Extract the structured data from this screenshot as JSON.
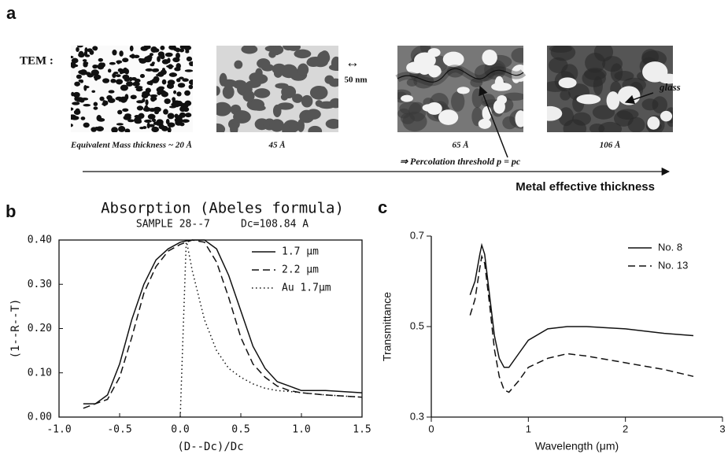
{
  "panel_a": {
    "label": "a",
    "tem_label": "TEM :",
    "scale": "50 nm",
    "thicknesses": [
      "Equivalent Mass thickness ~ 20 Å",
      "45 Å",
      "65 Å",
      "106 Å"
    ],
    "percolation": "⇒ Percolation threshold p = pc",
    "glass": "glass",
    "axis_label": "Metal effective thickness"
  },
  "chart_data": [
    {
      "type": "line",
      "panel": "b",
      "title": "Absorption (Abeles formula)",
      "subtitle": "SAMPLE 28--7     Dc=108.84 A",
      "x_label": "(D--Dc)/Dc",
      "y_label": "(1--R--T)",
      "frame": true,
      "legend": "upper right",
      "xlim": [
        -1,
        1.5
      ],
      "xticks": [
        {
          "value": -1,
          "label": "-1.0"
        },
        -0.5,
        {
          "value": 0,
          "label": "0.0"
        },
        0.5,
        {
          "value": 1,
          "label": "1.0"
        },
        1.5
      ],
      "ylim": [
        0,
        0.4
      ],
      "yticks": [
        {
          "value": 0,
          "label": "0.00"
        },
        {
          "value": 0.1,
          "label": "0.10"
        },
        {
          "value": 0.2,
          "label": "0.20"
        },
        {
          "value": 0.3,
          "label": "0.30"
        },
        {
          "value": 0.4,
          "label": "0.40"
        }
      ],
      "x": [
        -0.8,
        -0.7,
        -0.6,
        -0.5,
        -0.4,
        -0.3,
        -0.2,
        -0.1,
        0,
        0.05,
        0.1,
        0.2,
        0.3,
        0.4,
        0.5,
        0.6,
        0.7,
        0.8,
        0.9,
        1.0,
        1.2,
        1.5
      ],
      "series": [
        {
          "name": "1.7 μm",
          "color": "#111111",
          "dash": "solid",
          "values": [
            0.03,
            0.03,
            0.05,
            0.12,
            0.22,
            0.3,
            0.355,
            0.38,
            0.395,
            0.398,
            0.4,
            0.4,
            0.38,
            0.32,
            0.24,
            0.16,
            0.11,
            0.08,
            0.07,
            0.06,
            0.06,
            0.055
          ]
        },
        {
          "name": "2.2 μm",
          "color": "#111111",
          "dash": "dashed",
          "values": [
            0.02,
            0.03,
            0.04,
            0.09,
            0.18,
            0.28,
            0.34,
            0.375,
            0.39,
            0.395,
            0.4,
            0.395,
            0.35,
            0.27,
            0.18,
            0.12,
            0.09,
            0.07,
            0.06,
            0.055,
            0.05,
            0.045
          ]
        },
        {
          "name": "Au 1.7μm",
          "color": "#111111",
          "dash": "dotted",
          "values": [
            null,
            null,
            null,
            null,
            null,
            null,
            null,
            null,
            0,
            0.4,
            0.33,
            0.22,
            0.15,
            0.11,
            0.09,
            0.075,
            0.065,
            0.06,
            0.058,
            0.055,
            0.05,
            0.045
          ]
        }
      ]
    },
    {
      "type": "line",
      "panel": "c",
      "x_label": "Wavelength (μm)",
      "y_label": "Transmittance",
      "frame": false,
      "legend": "upper right",
      "xlim": [
        0,
        3
      ],
      "xticks": [
        0,
        1,
        2,
        3
      ],
      "ylim": [
        0.3,
        0.7
      ],
      "yticks": [
        0.3,
        0.5,
        0.7
      ],
      "x": [
        0.4,
        0.45,
        0.5,
        0.52,
        0.55,
        0.6,
        0.65,
        0.7,
        0.75,
        0.8,
        0.9,
        1.0,
        1.2,
        1.4,
        1.6,
        2.0,
        2.4,
        2.7
      ],
      "series": [
        {
          "name": "No. 8",
          "color": "#111111",
          "dash": "solid",
          "values": [
            0.57,
            0.6,
            0.66,
            0.68,
            0.66,
            0.57,
            0.48,
            0.43,
            0.41,
            0.41,
            0.44,
            0.47,
            0.495,
            0.5,
            0.5,
            0.495,
            0.485,
            0.48
          ]
        },
        {
          "name": "No. 13",
          "color": "#111111",
          "dash": "dashed",
          "values": [
            0.525,
            0.56,
            0.63,
            0.655,
            0.64,
            0.55,
            0.45,
            0.39,
            0.36,
            0.355,
            0.38,
            0.41,
            0.43,
            0.44,
            0.435,
            0.42,
            0.405,
            0.39
          ]
        }
      ]
    }
  ]
}
